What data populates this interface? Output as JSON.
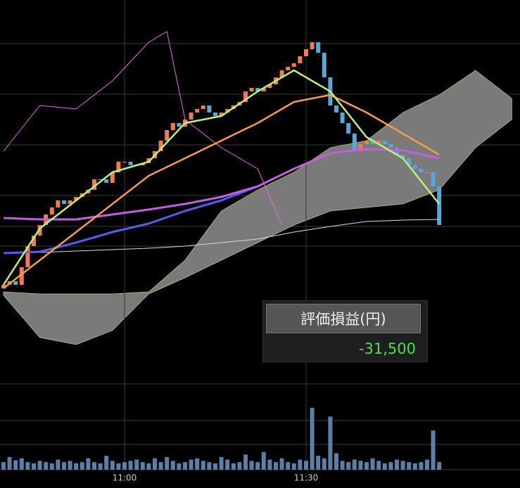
{
  "chart_data": {
    "type": "candlestick",
    "categories": [
      null,
      null,
      null,
      null,
      null,
      null,
      null,
      null,
      null,
      null,
      null,
      null,
      null,
      null,
      null,
      null,
      null,
      null,
      null,
      null,
      "11:00",
      null,
      null,
      null,
      null,
      null,
      null,
      null,
      null,
      null,
      null,
      null,
      null,
      null,
      null,
      null,
      null,
      null,
      null,
      null,
      null,
      null,
      null,
      null,
      null,
      null,
      null,
      null,
      null,
      null,
      "11:30",
      null,
      null,
      null,
      null,
      null,
      null,
      null,
      null,
      null,
      null,
      null,
      null,
      null,
      null,
      null,
      null,
      null,
      null,
      null,
      null,
      null,
      null
    ],
    "open": [
      130,
      135,
      140,
      135,
      160,
      190,
      205,
      220,
      235,
      245,
      255,
      250,
      255,
      260,
      265,
      270,
      285,
      285,
      280,
      295,
      310,
      310,
      305,
      305,
      308,
      315,
      325,
      340,
      355,
      365,
      360,
      370,
      380,
      385,
      390,
      380,
      375,
      380,
      385,
      390,
      395,
      410,
      415,
      410,
      415,
      420,
      430,
      440,
      445,
      450,
      460,
      470,
      480,
      465,
      430,
      390,
      380,
      365,
      350,
      325,
      335,
      340,
      335,
      340,
      335,
      330,
      320,
      315,
      305,
      300,
      295,
      295,
      275
    ],
    "close": [
      135,
      140,
      135,
      160,
      190,
      205,
      220,
      235,
      245,
      255,
      250,
      255,
      260,
      265,
      270,
      285,
      285,
      280,
      295,
      310,
      310,
      305,
      305,
      308,
      315,
      325,
      340,
      355,
      365,
      360,
      370,
      380,
      385,
      390,
      380,
      375,
      380,
      385,
      390,
      395,
      410,
      415,
      410,
      415,
      420,
      430,
      440,
      445,
      450,
      460,
      470,
      480,
      465,
      430,
      390,
      380,
      365,
      350,
      325,
      335,
      340,
      335,
      340,
      335,
      330,
      320,
      315,
      305,
      300,
      295,
      295,
      275,
      220
    ],
    "volume": [
      12,
      20,
      15,
      18,
      12,
      10,
      14,
      12,
      10,
      16,
      12,
      14,
      10,
      12,
      18,
      12,
      10,
      22,
      14,
      10,
      12,
      14,
      16,
      12,
      10,
      18,
      12,
      20,
      14,
      10,
      12,
      16,
      18,
      14,
      12,
      10,
      20,
      16,
      10,
      12,
      24,
      14,
      12,
      28,
      16,
      12,
      18,
      12,
      10,
      16,
      14,
      98,
      22,
      18,
      84,
      26,
      14,
      12,
      16,
      14,
      12,
      18,
      14,
      10,
      12,
      16,
      14,
      12,
      10,
      12,
      16,
      62,
      12
    ],
    "up_color": "#f07a55",
    "down_color": "#5aa6d6",
    "volume_color": "#5c7fa8",
    "xlim": [
      -0.58,
      85.35
    ],
    "ylim": [
      0,
      540
    ],
    "volume_ylim": [
      0,
      120
    ],
    "cloud": {
      "color": "#7a7a7a",
      "x": [
        0,
        6,
        12,
        18,
        24,
        30,
        36,
        42,
        48,
        54,
        60,
        66,
        72,
        78,
        84
      ],
      "upper": [
        125,
        122,
        122,
        122,
        125,
        170,
        240,
        270,
        295,
        330,
        340,
        380,
        405,
        440,
        400
      ],
      "lower": [
        120,
        60,
        50,
        70,
        122,
        145,
        170,
        195,
        220,
        240,
        245,
        250,
        270,
        330,
        370
      ]
    },
    "lines": [
      {
        "color": "#e070e0",
        "width": 1,
        "x": [
          0,
          6,
          12,
          18,
          24,
          27,
          30,
          36,
          42,
          46
        ],
        "values": [
          325,
          390,
          385,
          425,
          480,
          495,
          370,
          330,
          300,
          220
        ]
      },
      {
        "color": "#dddddd",
        "width": 1,
        "x": [
          0,
          6,
          12,
          18,
          24,
          30,
          36,
          42,
          48,
          54,
          60,
          66,
          72
        ],
        "values": [
          180,
          181,
          183,
          185,
          187,
          190,
          195,
          200,
          210,
          218,
          225,
          227,
          228
        ]
      },
      {
        "color": "#5a5af0",
        "width": 3,
        "x": [
          0,
          6,
          12,
          18,
          24,
          30,
          36,
          42
        ],
        "values": [
          180,
          182,
          195,
          210,
          222,
          240,
          255,
          275
        ]
      },
      {
        "color": "#c060e0",
        "width": 3,
        "x": [
          0,
          6,
          12,
          18,
          24,
          30,
          36,
          42,
          48,
          54,
          60,
          66,
          72
        ],
        "values": [
          230,
          228,
          228,
          235,
          242,
          250,
          260,
          275,
          300,
          322,
          328,
          326,
          315
        ]
      },
      {
        "color": "#f59a50",
        "width": 2.5,
        "x": [
          0,
          6,
          12,
          18,
          24,
          30,
          36,
          42,
          48,
          54,
          60,
          66,
          72
        ],
        "values": [
          130,
          170,
          210,
          250,
          290,
          315,
          340,
          365,
          395,
          405,
          380,
          350,
          320
        ]
      },
      {
        "color": "#b8f07a",
        "width": 2.5,
        "x": [
          0,
          6,
          12,
          18,
          24,
          30,
          36,
          42,
          48,
          54,
          60,
          66,
          72
        ],
        "values": [
          135,
          215,
          255,
          295,
          310,
          365,
          375,
          410,
          440,
          410,
          345,
          315,
          250
        ]
      }
    ]
  },
  "pl_panel": {
    "label": "評価損益(円)",
    "value": "-31,500"
  }
}
